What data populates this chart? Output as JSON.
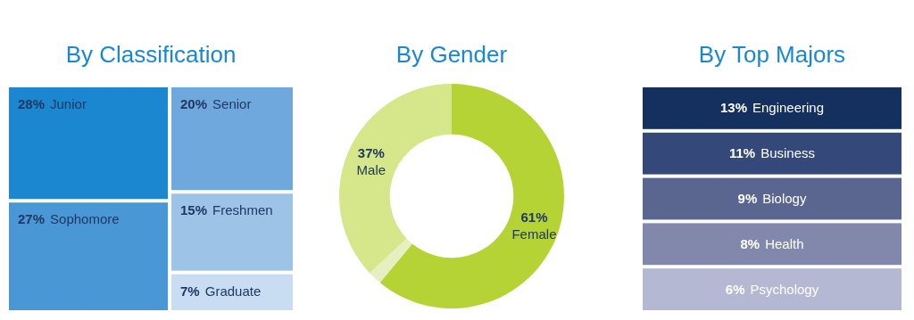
{
  "chart_data": [
    {
      "type": "other",
      "title": "By Classification",
      "categories": [
        "Junior",
        "Sophomore",
        "Senior",
        "Freshmen",
        "Graduate"
      ],
      "values": [
        28,
        27,
        20,
        15,
        7
      ],
      "value_labels": [
        "28%",
        "27%",
        "20%",
        "15%",
        "7%"
      ],
      "colors": [
        "#1a87d0",
        "#4a97d5",
        "#6fa8dc",
        "#9dc3e6",
        "#c8dcf2"
      ]
    },
    {
      "type": "donut",
      "title": "By Gender",
      "categories": [
        "Female",
        null,
        "Male"
      ],
      "values": [
        61,
        2,
        37
      ],
      "value_labels": [
        "61%",
        null,
        "37%"
      ],
      "colors": [
        "#b5d334",
        "#e6efc0",
        "#d6e68a"
      ]
    },
    {
      "type": "other",
      "title": "By Top Majors",
      "categories": [
        "Engineering",
        "Business",
        "Biology",
        "Health",
        "Psychology"
      ],
      "values": [
        13,
        11,
        9,
        8,
        6
      ],
      "value_labels": [
        "13%",
        "11%",
        "9%",
        "8%",
        "6%"
      ],
      "colors": [
        "#13305f",
        "#34487a",
        "#5a6690",
        "#8288ac",
        "#b4b8d2"
      ]
    }
  ]
}
